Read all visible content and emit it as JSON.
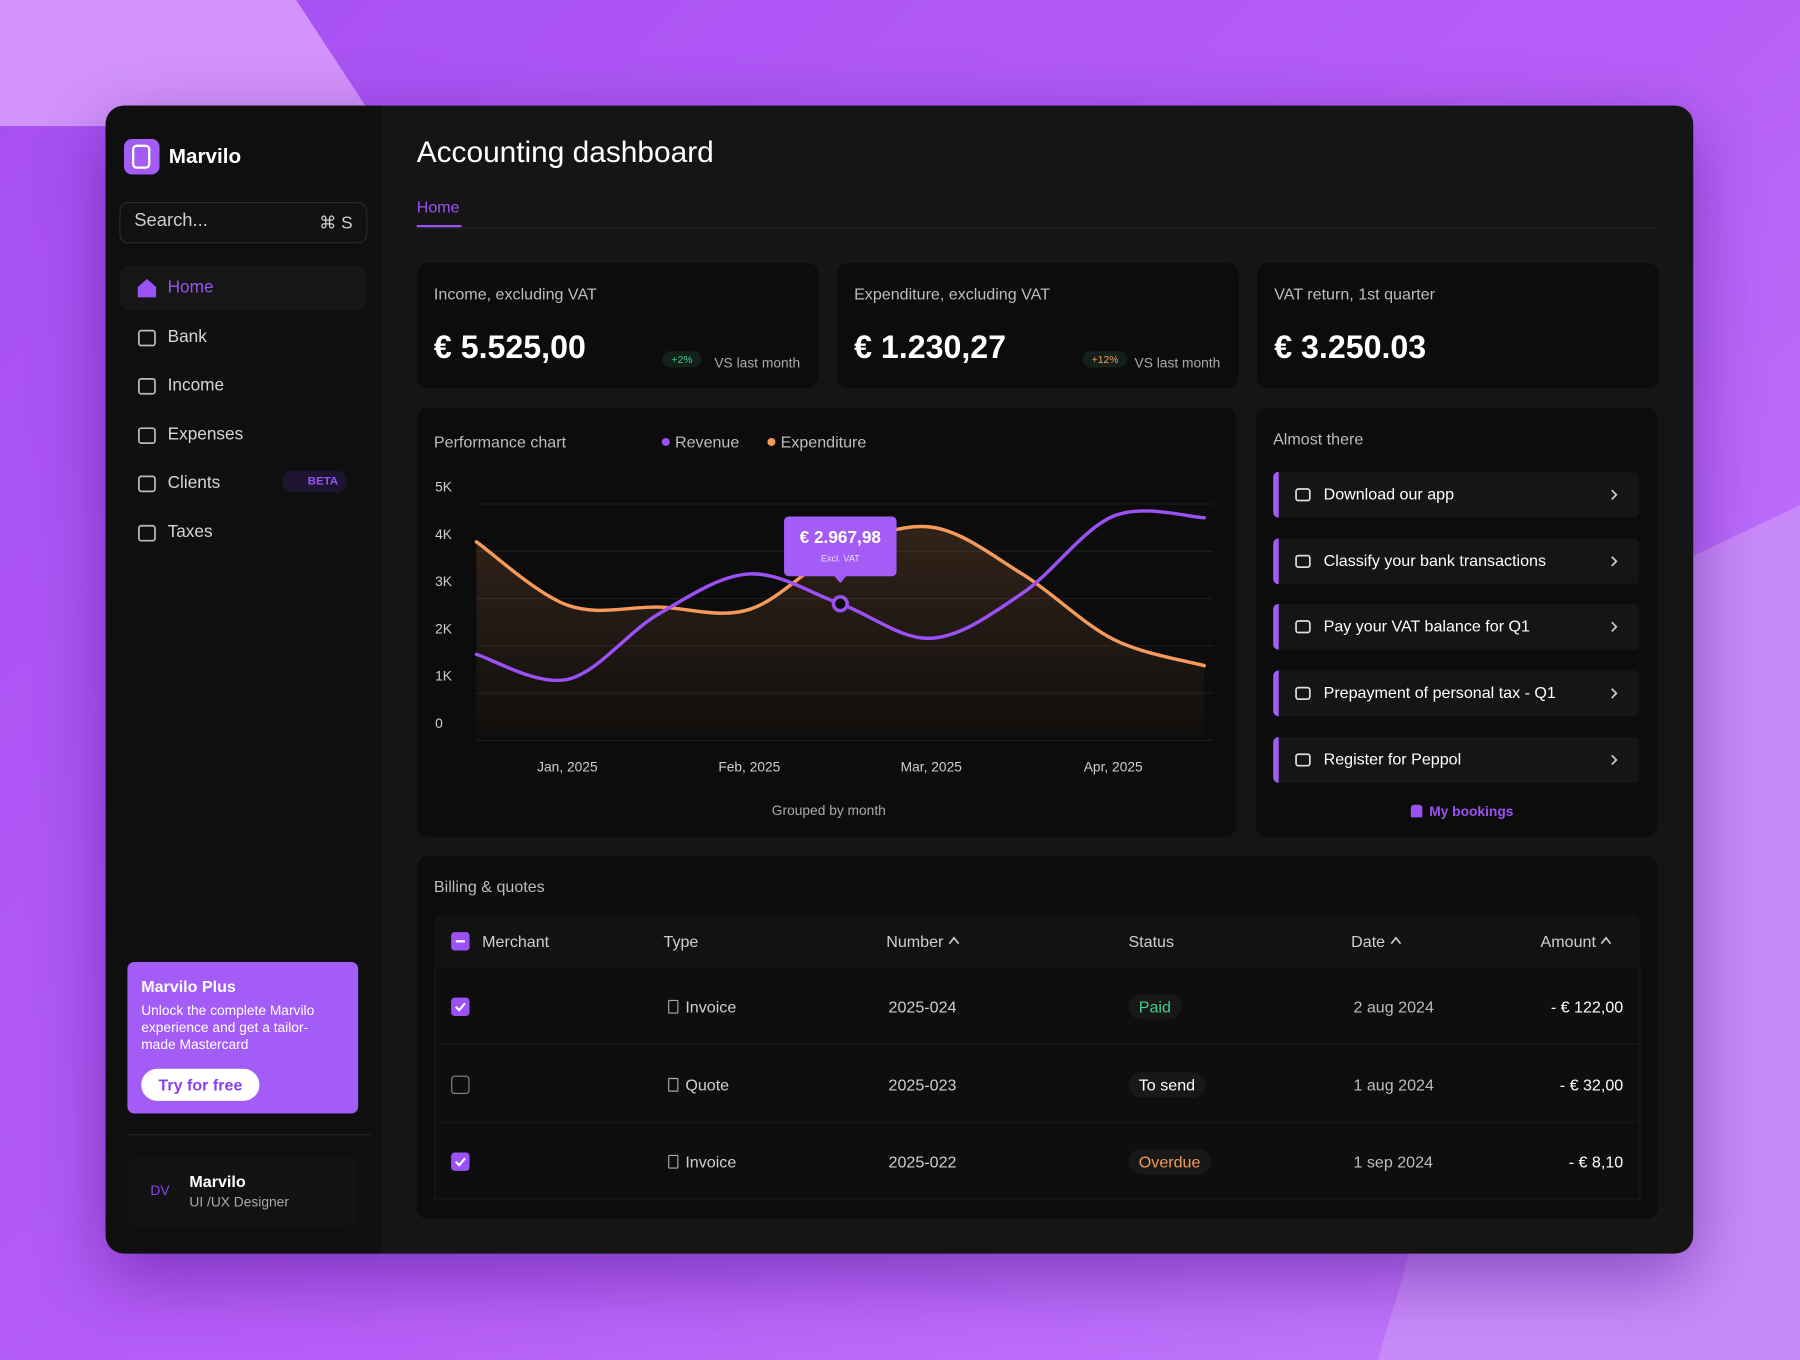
{
  "brand": "Marvilo",
  "search": {
    "placeholder": "Search...",
    "shortcut": "⌘ S"
  },
  "nav": [
    {
      "label": "Home",
      "active": true
    },
    {
      "label": "Bank"
    },
    {
      "label": "Income"
    },
    {
      "label": "Expenses"
    },
    {
      "label": "Clients",
      "badge": "BETA"
    },
    {
      "label": "Taxes"
    }
  ],
  "promo": {
    "title": "Marvilo Plus",
    "text": "Unlock the complete Marvilo experience and get a tailor-made Mastercard",
    "button": "Try for free"
  },
  "user": {
    "initials": "DV",
    "name": "Marvilo",
    "role": "UI /UX Designer"
  },
  "header": {
    "title": "Accounting dashboard",
    "tabs": [
      "Home"
    ]
  },
  "stats": [
    {
      "label": "Income, excluding VAT",
      "value": "€ 5.525,00",
      "change": "+2%",
      "change_color": "#3ecf8e",
      "change_note": "VS last month"
    },
    {
      "label": "Expenditure, excluding VAT",
      "value": "€ 1.230,27",
      "change": "+12%",
      "change_color": "#f59a5b",
      "change_note": "VS last month"
    },
    {
      "label": "VAT return, 1st quarter",
      "value": "€ 3.250.03"
    }
  ],
  "chart_data": {
    "type": "line",
    "title": "Performance chart",
    "categories": [
      null,
      "Jan, 2025",
      null,
      "Feb, 2025",
      null,
      "Mar, 2025",
      null,
      "Apr, 2025",
      null
    ],
    "series": [
      {
        "name": "Revenue",
        "color": "#9b51f5",
        "values": [
          1480,
          950,
          2330,
          3180,
          2550,
          1820,
          2770,
          4400,
          4370
        ]
      },
      {
        "name": "Expenditure",
        "color": "#f59a5b",
        "values": [
          3860,
          2520,
          2480,
          2430,
          3670,
          4170,
          3180,
          1800,
          1240
        ]
      }
    ],
    "ylim": [
      0,
      5000
    ],
    "yticks": [
      0,
      {
        "value": 1000,
        "label": "1K"
      },
      {
        "value": 2000,
        "label": "2K"
      },
      {
        "value": 3000,
        "label": "3K"
      },
      {
        "value": 4000,
        "label": "4K"
      },
      {
        "value": 5000,
        "label": "5K"
      }
    ],
    "grid": true,
    "annotation": {
      "label": "€ 2.967,98",
      "note": "Excl. VAT"
    },
    "xlabel": "Grouped by month"
  },
  "tasks": {
    "title": "Almost there",
    "items": [
      "Download our app",
      "Classify your bank transactions",
      "Pay your VAT balance for Q1",
      "Prepayment of personal tax - Q1",
      "Register for Peppol"
    ],
    "link": "My bookings"
  },
  "table": {
    "title": "Billing & quotes",
    "columns": [
      "Merchant",
      "Type",
      "Number",
      "Status",
      "Date",
      "Amount"
    ],
    "rows": [
      {
        "checked": true,
        "type": "Invoice",
        "number": "2025-024",
        "status": "Paid",
        "status_color": "#3ecf8e",
        "date": "2 aug 2024",
        "amount": "- € 122,00"
      },
      {
        "checked": false,
        "type": "Quote",
        "number": "2025-023",
        "status": "To send",
        "status_color": "#ffffff",
        "date": "1 aug 2024",
        "amount": "- € 32,00"
      },
      {
        "checked": true,
        "type": "Invoice",
        "number": "2025-022",
        "status": "Overdue",
        "status_color": "#f59a5b",
        "date": "1 sep 2024",
        "amount": "- € 8,10"
      }
    ]
  }
}
